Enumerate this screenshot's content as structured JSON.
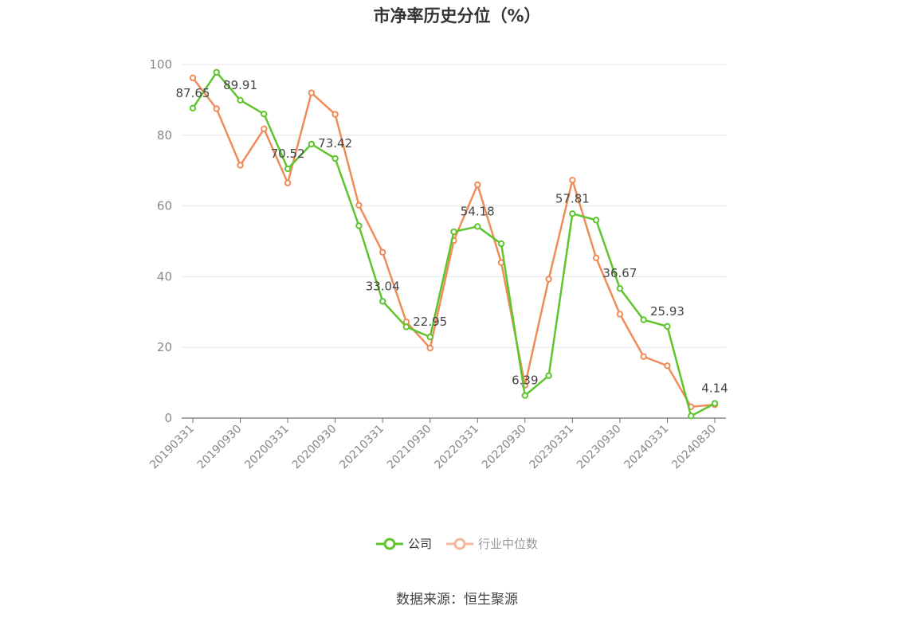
{
  "chart_data": {
    "type": "line",
    "title": "市净率历史分位（%）",
    "ylim": [
      0,
      100
    ],
    "yticks": [
      "0",
      "20",
      "40",
      "60",
      "80",
      "100"
    ],
    "categories": [
      "20190331",
      "20190630",
      "20190930",
      "20191231",
      "20200331",
      "20200630",
      "20200930",
      "20201231",
      "20210331",
      "20210630",
      "20210930",
      "20211231",
      "20220331",
      "20220630",
      "20220930",
      "20221231",
      "20230331",
      "20230630",
      "20230930",
      "20231231",
      "20240331",
      "20240630",
      "20240830"
    ],
    "tick_labels": [
      "20190331",
      "20190930",
      "20200331",
      "20200930",
      "20210331",
      "20210930",
      "20220331",
      "20220930",
      "20230331",
      "20230930",
      "20240331",
      "20240830"
    ],
    "series": [
      {
        "name": "公司",
        "color": "#5ec52e",
        "values": [
          87.65,
          97.8,
          89.91,
          86.0,
          70.52,
          77.5,
          73.42,
          54.4,
          33.04,
          25.8,
          22.95,
          52.7,
          54.18,
          49.3,
          6.39,
          12.0,
          57.81,
          56.0,
          36.67,
          27.8,
          25.93,
          0.6,
          4.14
        ],
        "labels": [
          "87.65",
          "",
          "89.91",
          "",
          "70.52",
          "",
          "73.42",
          "",
          "33.04",
          "",
          "22.95",
          "",
          "54.18",
          "",
          "6.39",
          "",
          "57.81",
          "",
          "36.67",
          "",
          "25.93",
          "",
          "4.14"
        ]
      },
      {
        "name": "行业中位数",
        "color": "#f08c5a",
        "values": [
          96.2,
          87.5,
          71.5,
          81.8,
          66.5,
          92.0,
          85.9,
          60.2,
          46.9,
          27.2,
          19.8,
          50.2,
          66.0,
          44.0,
          9.3,
          39.3,
          67.3,
          45.3,
          29.4,
          17.4,
          14.8,
          3.2,
          3.8
        ]
      }
    ],
    "grid": true,
    "legend_position": "bottom"
  },
  "source": "数据来源：恒生聚源"
}
